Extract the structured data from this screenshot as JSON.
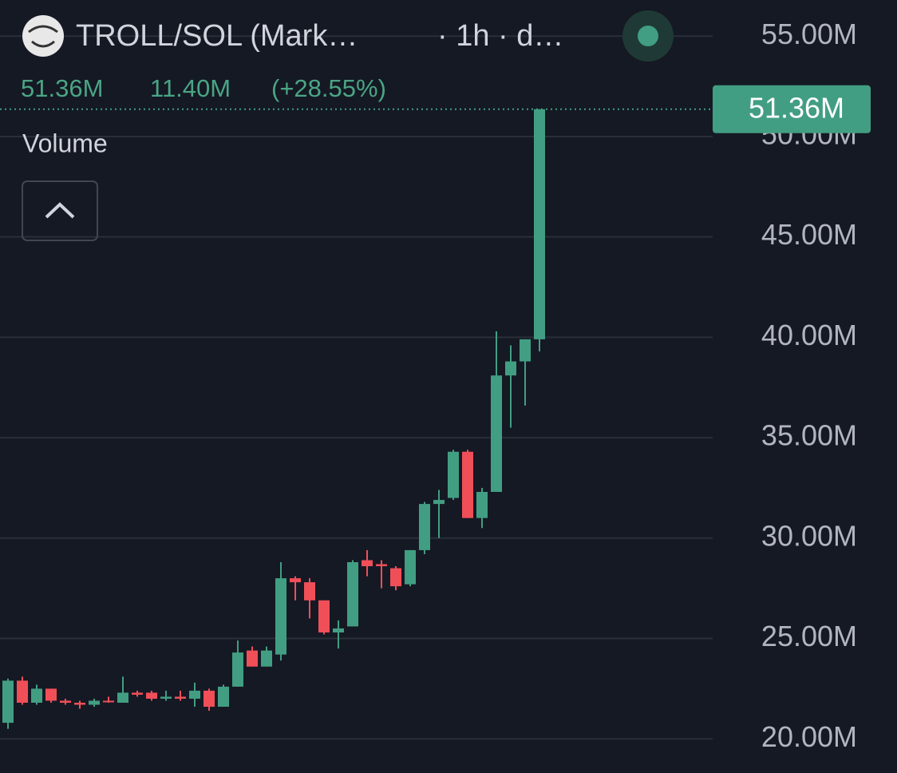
{
  "header": {
    "title": "TROLL/SOL (Mark…",
    "interval": "· 1h · d…",
    "change": "11.40M",
    "change_percent": "(+28.55%)",
    "indicator": "Volume"
  },
  "chart_data": {
    "type": "candlestick",
    "up_color": "#429e82",
    "down_color": "#f04f58",
    "ylim": [
      18.3,
      56.8
    ],
    "yticks": [
      {
        "value": 20,
        "label": "20.00M"
      },
      {
        "value": 25,
        "label": "25.00M"
      },
      {
        "value": 30,
        "label": "30.00M"
      },
      {
        "value": 35,
        "label": "35.00M"
      },
      {
        "value": 40,
        "label": "40.00M"
      },
      {
        "value": 45,
        "label": "45.00M"
      },
      {
        "value": 50,
        "label": "50.00M"
      },
      {
        "value": 55,
        "label": "55.00M"
      }
    ],
    "grid": true,
    "last_price": {
      "value": 51.36,
      "label": "51.36M"
    },
    "open": [
      20.8,
      22.9,
      21.8,
      22.5,
      21.9,
      21.8,
      21.7,
      21.9,
      21.8,
      22.3,
      22.3,
      22.0,
      22.1,
      22.0,
      22.4,
      21.6,
      22.6,
      24.4,
      23.6,
      24.2,
      28.0,
      27.8,
      26.9,
      25.3,
      25.6,
      28.9,
      28.7,
      28.5,
      27.7,
      29.4,
      31.7,
      32.0,
      34.3,
      31.0,
      32.3,
      38.1,
      38.8,
      39.9
    ],
    "high": [
      23.0,
      23.1,
      22.7,
      22.5,
      22.0,
      21.9,
      22.0,
      22.1,
      23.1,
      22.4,
      22.4,
      22.4,
      22.4,
      22.8,
      22.5,
      22.7,
      24.9,
      24.6,
      24.6,
      28.8,
      28.1,
      28.0,
      26.9,
      25.9,
      28.9,
      29.4,
      28.9,
      28.6,
      29.4,
      31.8,
      32.4,
      34.4,
      34.4,
      32.5,
      40.3,
      39.6,
      39.9,
      51.36
    ],
    "low": [
      20.5,
      21.7,
      21.7,
      21.8,
      21.7,
      21.5,
      21.6,
      21.8,
      21.8,
      22.1,
      21.9,
      21.9,
      21.9,
      21.6,
      21.4,
      21.6,
      22.6,
      23.6,
      23.6,
      23.9,
      26.9,
      26.0,
      25.2,
      24.5,
      25.6,
      28.1,
      27.5,
      27.4,
      27.6,
      29.2,
      30.0,
      31.9,
      31.0,
      30.5,
      32.3,
      35.5,
      36.6,
      39.3
    ],
    "close": [
      22.9,
      21.8,
      22.5,
      21.9,
      21.8,
      21.7,
      21.9,
      21.85,
      22.3,
      22.2,
      22.0,
      22.1,
      22.0,
      22.4,
      21.6,
      22.6,
      24.3,
      23.6,
      24.4,
      28.0,
      27.8,
      26.9,
      25.3,
      25.5,
      28.8,
      28.6,
      28.6,
      27.6,
      29.4,
      31.7,
      31.9,
      34.3,
      31.0,
      32.3,
      38.1,
      38.8,
      39.9,
      51.36
    ]
  }
}
